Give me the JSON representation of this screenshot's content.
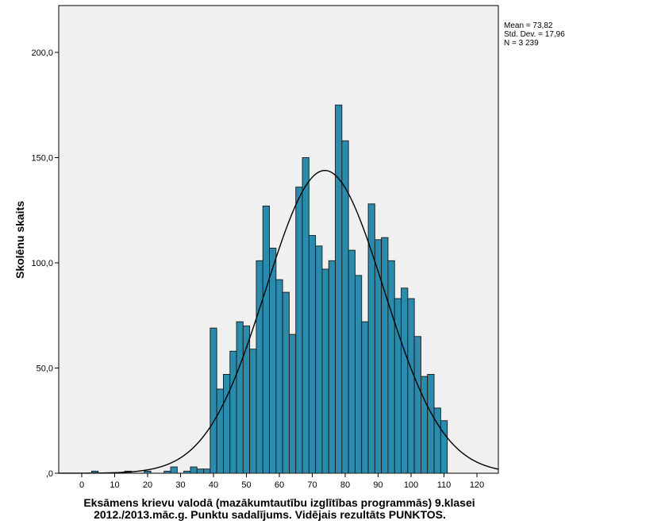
{
  "chart_data": {
    "type": "bar",
    "subtype": "histogram-with-normal-curve",
    "xlabel_line1": "Eksāmens krievu valodā (mazākumtautību izglītības programmās) 9.klasei",
    "xlabel_line2": "2012./2013.māc.g. Punktu sadalījums. Vidējais rezultāts PUNKTOS.",
    "ylabel": "Skolēnu skaits",
    "xlim": [
      -7,
      127
    ],
    "ylim": [
      0,
      225
    ],
    "xticks": [
      "0",
      "10",
      "20",
      "30",
      "40",
      "50",
      "60",
      "70",
      "80",
      "90",
      "100",
      "110",
      "120"
    ],
    "xtick_values": [
      0,
      10,
      20,
      30,
      40,
      50,
      60,
      70,
      80,
      90,
      100,
      110,
      120
    ],
    "yticks": [
      ",0",
      "50,0",
      "100,0",
      "150,0",
      "200,0"
    ],
    "ytick_values": [
      0,
      50,
      100,
      150,
      200
    ],
    "bin_width": 2,
    "bins": [
      4,
      14,
      20,
      26,
      28,
      32,
      34,
      36,
      38,
      40,
      42,
      44,
      46,
      48,
      50,
      52,
      54,
      56,
      58,
      60,
      62,
      64,
      66,
      68,
      70,
      72,
      74,
      76,
      78,
      80,
      82,
      84,
      86,
      88,
      90,
      92,
      94,
      96,
      98,
      100,
      102,
      104,
      106,
      108,
      110
    ],
    "values": [
      1,
      1,
      1,
      1,
      3,
      1,
      3,
      2,
      2,
      69,
      40,
      47,
      58,
      72,
      70,
      59,
      101,
      127,
      107,
      92,
      86,
      66,
      136,
      150,
      113,
      108,
      97,
      101,
      175,
      158,
      106,
      94,
      72,
      128,
      111,
      112,
      101,
      83,
      88,
      83,
      65,
      46,
      47,
      31,
      25
    ],
    "normal_curve": {
      "mean": 73.82,
      "sd": 17.96,
      "n": 3239
    },
    "bar_color": "#2a8bad",
    "bar_edge_color": "#1a1a1a",
    "plot_bg": "#f0f0f0",
    "stats": {
      "mean": "Mean = 73,82",
      "sd": "Std. Dev. = 17,96",
      "n": "N = 3 239"
    }
  }
}
